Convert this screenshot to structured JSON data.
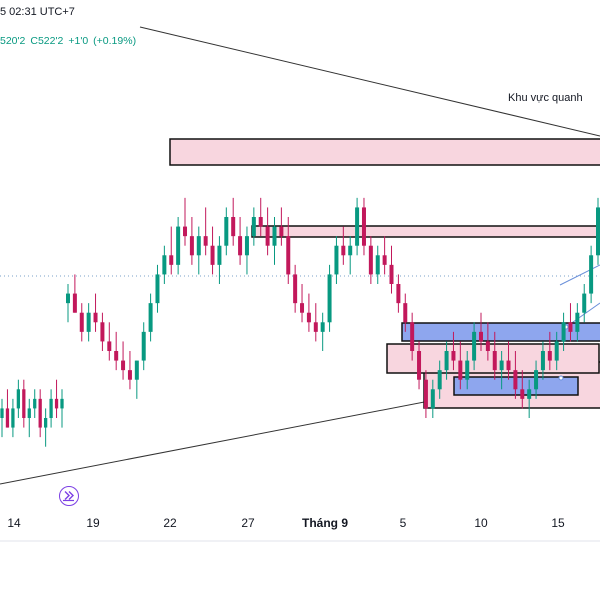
{
  "header": {
    "time": "5 02:31 UTC+7",
    "prev_value": "520'2",
    "close_label": "C",
    "close_value": "522'2",
    "change": "+1'0",
    "change_pct": "(+0.19%)"
  },
  "annotation": "Khu vực quanh",
  "icons": {
    "replay": "replay-icon"
  },
  "colors": {
    "up": "#089981",
    "down": "#c2185b",
    "pink_zone": "#f8d6df",
    "blue_zone": "#8ea6ee",
    "trend_line": "#333333"
  },
  "chart_data": {
    "type": "candlestick",
    "x_ticks": [
      "14",
      "19",
      "22",
      "27",
      "Tháng 9",
      "5",
      "10",
      "15"
    ],
    "series": [
      {
        "values": [
          [
            512,
            514,
            510,
            513
          ],
          [
            513,
            515,
            511,
            511
          ],
          [
            511,
            514,
            510,
            513
          ],
          [
            513,
            516,
            512,
            515
          ],
          [
            515,
            516,
            511,
            512
          ],
          [
            512,
            514,
            510,
            513
          ],
          [
            513,
            515,
            512,
            514
          ],
          [
            514,
            515,
            510,
            511
          ],
          [
            511,
            513,
            509,
            512
          ],
          [
            512,
            515,
            511,
            514
          ],
          [
            514,
            516,
            512,
            513
          ],
          [
            513,
            515,
            511,
            514
          ]
        ]
      },
      {
        "values": [
          [
            524,
            526,
            522,
            525
          ],
          [
            525,
            527,
            523,
            523
          ],
          [
            523,
            524,
            520,
            521
          ],
          [
            521,
            524,
            520,
            523
          ],
          [
            523,
            525,
            521,
            522
          ],
          [
            522,
            523,
            519,
            520
          ],
          [
            520,
            522,
            518,
            519
          ],
          [
            519,
            521,
            517,
            518
          ],
          [
            518,
            520,
            516,
            517
          ],
          [
            517,
            519,
            515,
            516
          ],
          [
            516,
            518,
            514,
            518
          ],
          [
            518,
            522,
            517,
            521
          ],
          [
            521,
            525,
            520,
            524
          ],
          [
            524,
            528,
            523,
            527
          ],
          [
            527,
            530,
            526,
            529
          ],
          [
            529,
            532,
            527,
            528
          ],
          [
            528,
            533,
            527,
            532
          ],
          [
            532,
            535,
            530,
            531
          ],
          [
            531,
            533,
            528,
            529
          ],
          [
            529,
            532,
            527,
            531
          ],
          [
            531,
            534,
            529,
            530
          ],
          [
            530,
            532,
            527,
            528
          ],
          [
            528,
            531,
            526,
            530
          ],
          [
            530,
            534,
            529,
            533
          ],
          [
            533,
            535,
            530,
            531
          ],
          [
            531,
            533,
            528,
            529
          ],
          [
            529,
            532,
            527,
            531
          ],
          [
            531,
            534,
            530,
            533
          ],
          [
            533,
            535,
            531,
            532
          ],
          [
            532,
            534,
            529,
            530
          ],
          [
            530,
            533,
            528,
            532
          ],
          [
            532,
            534,
            530,
            531
          ],
          [
            531,
            533,
            526,
            527
          ],
          [
            527,
            528,
            523,
            524
          ],
          [
            524,
            526,
            522,
            523
          ],
          [
            523,
            525,
            521,
            522
          ],
          [
            522,
            524,
            520,
            521
          ],
          [
            521,
            523,
            519,
            522
          ],
          [
            522,
            528,
            521,
            527
          ],
          [
            527,
            531,
            526,
            530
          ],
          [
            530,
            532,
            528,
            529
          ],
          [
            529,
            531,
            527,
            530
          ],
          [
            530,
            535,
            529,
            534
          ],
          [
            534,
            535,
            529,
            530
          ],
          [
            530,
            531,
            526,
            527
          ],
          [
            527,
            530,
            526,
            529
          ],
          [
            529,
            531,
            527,
            528
          ],
          [
            528,
            530,
            525,
            526
          ],
          [
            526,
            527,
            523,
            524
          ],
          [
            524,
            525,
            521,
            522
          ],
          [
            522,
            523,
            518,
            519
          ],
          [
            519,
            520,
            515,
            516
          ],
          [
            516,
            517,
            512,
            513
          ],
          [
            513,
            516,
            512,
            515
          ],
          [
            515,
            518,
            514,
            517
          ],
          [
            517,
            520,
            516,
            519
          ],
          [
            519,
            521,
            517,
            518
          ],
          [
            518,
            520,
            515,
            516
          ],
          [
            516,
            519,
            515,
            518
          ],
          [
            518,
            522,
            517,
            521
          ],
          [
            521,
            523,
            519,
            520
          ],
          [
            520,
            522,
            518,
            519
          ],
          [
            519,
            521,
            516,
            517
          ],
          [
            517,
            519,
            515,
            518
          ],
          [
            518,
            520,
            516,
            517
          ],
          [
            517,
            519,
            514,
            515
          ],
          [
            515,
            517,
            513,
            514
          ],
          [
            514,
            516,
            512,
            515
          ],
          [
            515,
            518,
            514,
            517
          ],
          [
            517,
            520,
            516,
            519
          ],
          [
            519,
            521,
            517,
            518
          ],
          [
            518,
            521,
            517,
            520
          ],
          [
            520,
            523,
            519,
            522
          ],
          [
            522,
            524,
            520,
            521
          ],
          [
            521,
            524,
            520,
            523
          ],
          [
            523,
            526,
            522,
            525
          ],
          [
            525,
            530,
            524,
            529
          ],
          [
            529,
            535,
            528,
            534
          ]
        ]
      }
    ]
  }
}
